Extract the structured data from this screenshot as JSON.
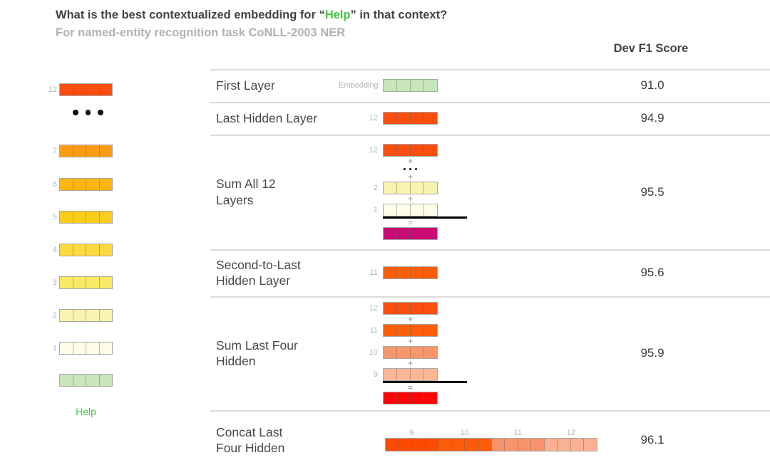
{
  "title": {
    "prefix": "What is the best contextualized embedding for ",
    "quote_open": "“",
    "word": "Help",
    "quote_close": "”",
    "suffix": " in that context?"
  },
  "subtitle": "For named-entity recognition task CoNLL-2003 NER",
  "score_header": "Dev F1 Score",
  "symbols": {
    "plus": "+",
    "equals": "="
  },
  "colors": {
    "layer12": "#FA4E0F",
    "layer11": "#FA5E08",
    "layer10": "#F9976C",
    "layer9": "#FBB795",
    "layer7": "#FA9D12",
    "layer6": "#FBB70E",
    "layer5": "#FBCE1C",
    "layer4": "#FCD940",
    "layer3": "#FAE965",
    "layer2": "#F8F3AE",
    "layer1": "#FEFDE9",
    "embedding_green": "#C9E6BB",
    "sum_magenta": "#C90B73",
    "sum_red": "#FA0606",
    "concat9": "#FA4A04",
    "concat10": "#FA5C08",
    "concat11": "#F9936B",
    "concat12": "#FBB093",
    "highlight_green": "#3DCB3D",
    "border_gray": "#A8A8A8",
    "border_green": "#90BC83"
  },
  "stack": {
    "rows": [
      {
        "type": "vec",
        "label": "12",
        "color": "layer12"
      },
      {
        "type": "dots"
      },
      {
        "type": "vec",
        "label": "7",
        "color": "layer7"
      },
      {
        "type": "vec",
        "label": "6",
        "color": "layer6"
      },
      {
        "type": "vec",
        "label": "5",
        "color": "layer5"
      },
      {
        "type": "vec",
        "label": "4",
        "color": "layer4"
      },
      {
        "type": "vec",
        "label": "3",
        "color": "layer3"
      },
      {
        "type": "vec",
        "label": "2",
        "color": "layer2"
      },
      {
        "type": "vec",
        "label": "1",
        "color": "layer1"
      },
      {
        "type": "vec",
        "label": "",
        "color": "embedding_green"
      }
    ],
    "word": "Help"
  },
  "table": {
    "rows": [
      {
        "name": "first-layer",
        "label_lines": [
          "First Layer"
        ],
        "score": "91.0",
        "viz": [
          {
            "type": "vec",
            "label": "Embedding",
            "color": "embedding_green",
            "border": "border_green"
          }
        ]
      },
      {
        "name": "last-hidden-layer",
        "label_lines": [
          "Last Hidden Layer"
        ],
        "score": "94.9",
        "viz": [
          {
            "type": "vec",
            "label": "12",
            "color": "layer12"
          }
        ]
      },
      {
        "name": "sum-all-12-layers",
        "label_lines": [
          "Sum All 12",
          "Layers"
        ],
        "score": "95.5",
        "viz": [
          {
            "type": "vec",
            "label": "12",
            "color": "layer12"
          },
          {
            "type": "plus"
          },
          {
            "type": "dots"
          },
          {
            "type": "plus"
          },
          {
            "type": "vec",
            "label": "2",
            "color": "layer2"
          },
          {
            "type": "plus"
          },
          {
            "type": "vec",
            "label": "1",
            "color": "layer1"
          },
          {
            "type": "rule"
          },
          {
            "type": "equals"
          },
          {
            "type": "result",
            "color": "sum_magenta"
          }
        ]
      },
      {
        "name": "second-to-last-hidden-layer",
        "label_lines": [
          "Second-to-Last",
          "Hidden Layer"
        ],
        "score": "95.6",
        "viz": [
          {
            "type": "vec",
            "label": "11",
            "color": "layer11"
          }
        ]
      },
      {
        "name": "sum-last-four-hidden",
        "label_lines": [
          "Sum Last Four",
          "Hidden"
        ],
        "score": "95.9",
        "viz": [
          {
            "type": "vec",
            "label": "12",
            "color": "layer12"
          },
          {
            "type": "plus"
          },
          {
            "type": "vec",
            "label": "11",
            "color": "layer11"
          },
          {
            "type": "plus"
          },
          {
            "type": "vec",
            "label": "10",
            "color": "layer10"
          },
          {
            "type": "plus"
          },
          {
            "type": "vec",
            "label": "9",
            "color": "layer9"
          },
          {
            "type": "rule"
          },
          {
            "type": "equals"
          },
          {
            "type": "result",
            "color": "sum_red"
          }
        ]
      },
      {
        "name": "concat-last-four-hidden",
        "label_lines": [
          "Concat Last",
          "Four Hidden"
        ],
        "score": "96.1",
        "viz": [
          {
            "type": "concat",
            "groups": [
              {
                "label": "9",
                "color": "concat9"
              },
              {
                "label": "10",
                "color": "concat10"
              },
              {
                "label": "11",
                "color": "concat11"
              },
              {
                "label": "12",
                "color": "concat12"
              }
            ]
          }
        ]
      }
    ]
  }
}
